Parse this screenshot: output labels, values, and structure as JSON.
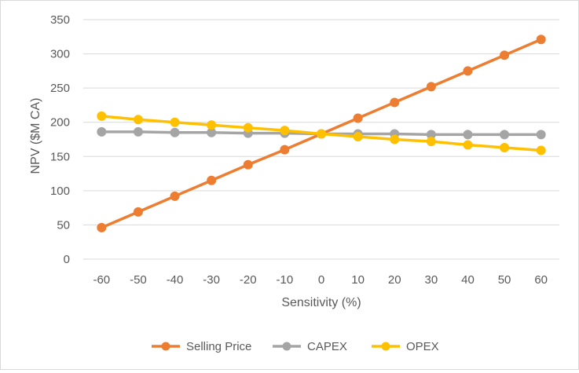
{
  "chart_data": {
    "type": "line",
    "title": "",
    "xlabel": "Sensitivity (%)",
    "ylabel": "NPV ($M CA)",
    "categories": [
      "-60",
      "-50",
      "-40",
      "-30",
      "-20",
      "-10",
      "0",
      "10",
      "20",
      "30",
      "40",
      "50",
      "60"
    ],
    "ylim": [
      0,
      350
    ],
    "yticks": [
      0,
      50,
      100,
      150,
      200,
      250,
      300,
      350
    ],
    "grid": "horizontal",
    "legend_position": "bottom",
    "series": [
      {
        "name": "Selling Price",
        "color": "#ED7D31",
        "values": [
          46,
          69,
          92,
          115,
          138,
          160,
          183,
          206,
          229,
          252,
          275,
          298,
          321
        ]
      },
      {
        "name": "CAPEX",
        "color": "#A5A5A5",
        "values": [
          186,
          186,
          185,
          185,
          184,
          184,
          183,
          183,
          183,
          182,
          182,
          182,
          182
        ]
      },
      {
        "name": "OPEX",
        "color": "#FFC000",
        "values": [
          209,
          204,
          200,
          196,
          192,
          188,
          183,
          179,
          175,
          172,
          167,
          163,
          159
        ]
      }
    ]
  }
}
